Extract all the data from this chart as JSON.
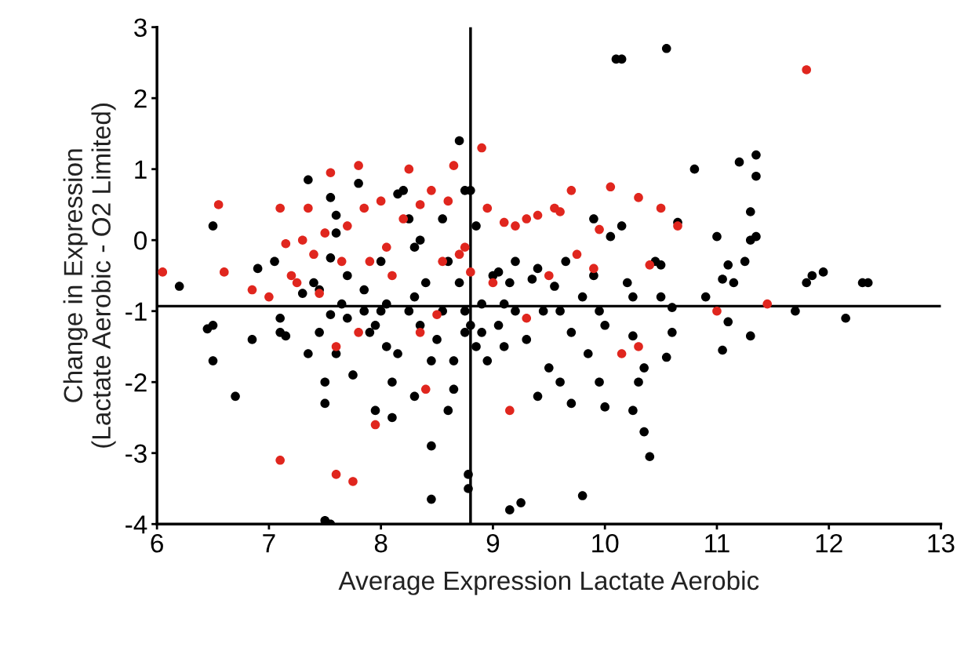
{
  "chart_data": {
    "type": "scatter",
    "xlabel": "Average Expression Lactate Aerobic",
    "ylabel": "Change in Expression\n(Lactate Aerobic - O2 Limited)",
    "xlim": [
      6,
      13
    ],
    "ylim": [
      -4,
      3
    ],
    "xticks": [
      6,
      7,
      8,
      9,
      10,
      11,
      12,
      13
    ],
    "yticks": [
      -4,
      -3,
      -2,
      -1,
      0,
      1,
      2,
      3
    ],
    "grid": false,
    "legend": false,
    "marker": "circle",
    "ref_lines": [
      {
        "axis": "x",
        "value": 8.8,
        "color": "#000000"
      },
      {
        "axis": "y",
        "value": -0.93,
        "color": "#000000"
      }
    ],
    "series": [
      {
        "color": "#000000",
        "x": [
          6.2,
          6.45,
          6.5,
          6.5,
          6.5,
          6.7,
          6.85,
          6.9,
          7.05,
          7.1,
          7.1,
          7.15,
          7.3,
          7.35,
          7.35,
          7.4,
          7.45,
          7.5,
          7.5,
          7.5,
          7.55,
          7.55,
          7.55,
          7.6,
          7.55,
          7.6,
          7.7,
          7.7,
          7.75,
          7.8,
          7.85,
          7.9,
          7.95,
          8.0,
          8.0,
          8.05,
          8.1,
          8.1,
          8.15,
          8.2,
          8.25,
          8.3,
          8.3,
          8.35,
          8.4,
          8.45,
          8.45,
          8.45,
          8.55,
          8.6,
          8.65,
          8.7,
          8.75,
          8.75,
          8.78,
          8.78,
          8.8,
          8.85,
          8.9,
          8.95,
          9.0,
          9.05,
          9.1,
          9.15,
          9.15,
          9.2,
          9.25,
          9.3,
          9.35,
          9.4,
          9.45,
          9.5,
          9.55,
          9.6,
          9.65,
          9.7,
          9.7,
          9.8,
          9.8,
          9.85,
          9.9,
          9.95,
          10.0,
          10.0,
          10.05,
          10.1,
          10.15,
          10.15,
          10.2,
          10.25,
          10.25,
          10.35,
          10.35,
          10.3,
          10.4,
          10.45,
          10.5,
          10.55,
          10.55,
          10.6,
          10.6,
          10.65,
          10.8,
          10.9,
          11.0,
          11.05,
          11.05,
          11.1,
          11.1,
          11.15,
          11.2,
          11.25,
          11.3,
          11.3,
          11.3,
          11.35,
          11.35,
          11.35,
          11.7,
          11.8,
          11.85,
          11.95,
          12.15,
          12.3,
          12.35,
          8.8,
          8.75,
          8.7,
          8.6,
          8.5,
          8.25,
          8.15,
          8.05,
          7.95,
          7.85,
          7.65,
          7.45,
          8.55,
          8.35,
          7.6,
          9.2,
          9.4,
          9.6,
          9.9,
          10.25,
          10.5,
          9.95,
          9.1,
          9.05,
          8.9,
          8.85,
          8.65,
          8.3
        ],
        "values": [
          -0.65,
          -1.25,
          -1.2,
          0.2,
          -1.7,
          -2.2,
          -1.4,
          -0.4,
          -0.3,
          -1.1,
          -1.3,
          -1.35,
          -0.75,
          0.85,
          -1.6,
          -0.6,
          -1.3,
          -2.0,
          -2.3,
          -3.95,
          -4.0,
          -0.25,
          0.6,
          0.35,
          -1.05,
          -1.6,
          -0.5,
          -1.1,
          -1.9,
          0.8,
          -0.7,
          -1.3,
          -2.4,
          -0.3,
          -1.0,
          -1.5,
          -2.0,
          -2.5,
          0.65,
          0.7,
          0.3,
          -0.1,
          -0.8,
          -1.2,
          -0.6,
          -1.7,
          -2.9,
          -3.65,
          -1.0,
          -2.4,
          -2.1,
          1.4,
          0.7,
          -1.3,
          -3.3,
          -3.5,
          0.7,
          -1.5,
          -0.9,
          -1.7,
          -0.5,
          -1.2,
          -0.9,
          -0.6,
          -3.8,
          -0.3,
          -3.7,
          -1.4,
          -0.55,
          -2.2,
          -1.0,
          -1.8,
          -0.65,
          -2.0,
          -0.3,
          -1.3,
          -2.3,
          -3.6,
          -0.8,
          -1.6,
          0.3,
          -2.0,
          -1.2,
          -2.35,
          0.05,
          2.55,
          2.55,
          0.2,
          -0.6,
          -1.35,
          -2.4,
          -2.7,
          -1.8,
          -2.0,
          -3.05,
          -0.3,
          -0.8,
          2.7,
          -1.65,
          -1.3,
          -0.95,
          0.25,
          1.0,
          -0.8,
          0.05,
          -0.55,
          -1.55,
          -0.35,
          -1.15,
          -0.6,
          1.1,
          -0.3,
          0.0,
          0.4,
          -1.35,
          1.2,
          0.9,
          0.05,
          -1.0,
          -0.6,
          -0.5,
          -0.45,
          -1.1,
          -0.6,
          -0.6,
          -1.2,
          -1.0,
          -0.6,
          -0.3,
          -1.4,
          -1.0,
          -1.6,
          -0.9,
          -1.2,
          -1.0,
          -0.9,
          -0.7,
          0.3,
          0.0,
          0.1,
          -1.0,
          -0.4,
          -1.0,
          -0.5,
          -0.8,
          -0.35,
          -1.0,
          -1.5,
          -0.45,
          -1.3,
          0.2,
          -1.7,
          -2.2
        ]
      },
      {
        "color": "#e0261e",
        "x": [
          6.05,
          6.55,
          6.6,
          6.85,
          7.0,
          7.1,
          7.1,
          7.15,
          7.2,
          7.25,
          7.3,
          7.35,
          7.4,
          7.45,
          7.5,
          7.55,
          7.6,
          7.6,
          7.7,
          7.75,
          7.8,
          7.85,
          7.9,
          7.95,
          8.0,
          8.05,
          8.2,
          8.25,
          8.35,
          8.35,
          8.4,
          8.45,
          8.55,
          8.6,
          8.65,
          8.7,
          8.8,
          8.9,
          8.95,
          9.0,
          9.1,
          9.15,
          9.2,
          9.3,
          9.4,
          9.5,
          9.55,
          9.6,
          9.7,
          9.75,
          9.9,
          9.95,
          10.05,
          10.15,
          10.3,
          10.3,
          10.4,
          10.5,
          10.65,
          11.0,
          11.45,
          11.8,
          8.1,
          7.65,
          8.75,
          9.3,
          8.5,
          7.8
        ],
        "values": [
          -0.45,
          0.5,
          -0.45,
          -0.7,
          -0.8,
          0.45,
          -3.1,
          -0.05,
          -0.5,
          -0.6,
          0.0,
          0.45,
          -0.2,
          -0.75,
          0.1,
          0.95,
          -1.5,
          -3.3,
          0.2,
          -3.4,
          1.05,
          0.45,
          -0.3,
          -2.6,
          0.55,
          -0.1,
          0.3,
          1.0,
          0.5,
          -1.3,
          -2.1,
          0.7,
          -0.3,
          0.55,
          1.05,
          -0.2,
          -0.45,
          1.3,
          0.45,
          -0.6,
          0.25,
          -2.4,
          0.2,
          0.3,
          0.35,
          -0.5,
          0.45,
          0.4,
          0.7,
          -0.2,
          -0.4,
          0.15,
          0.75,
          -1.6,
          0.6,
          -1.5,
          -0.35,
          0.45,
          0.2,
          -1.0,
          -0.9,
          2.4,
          -0.5,
          -0.3,
          -0.1,
          -1.1,
          -1.05,
          -1.3
        ]
      }
    ]
  }
}
